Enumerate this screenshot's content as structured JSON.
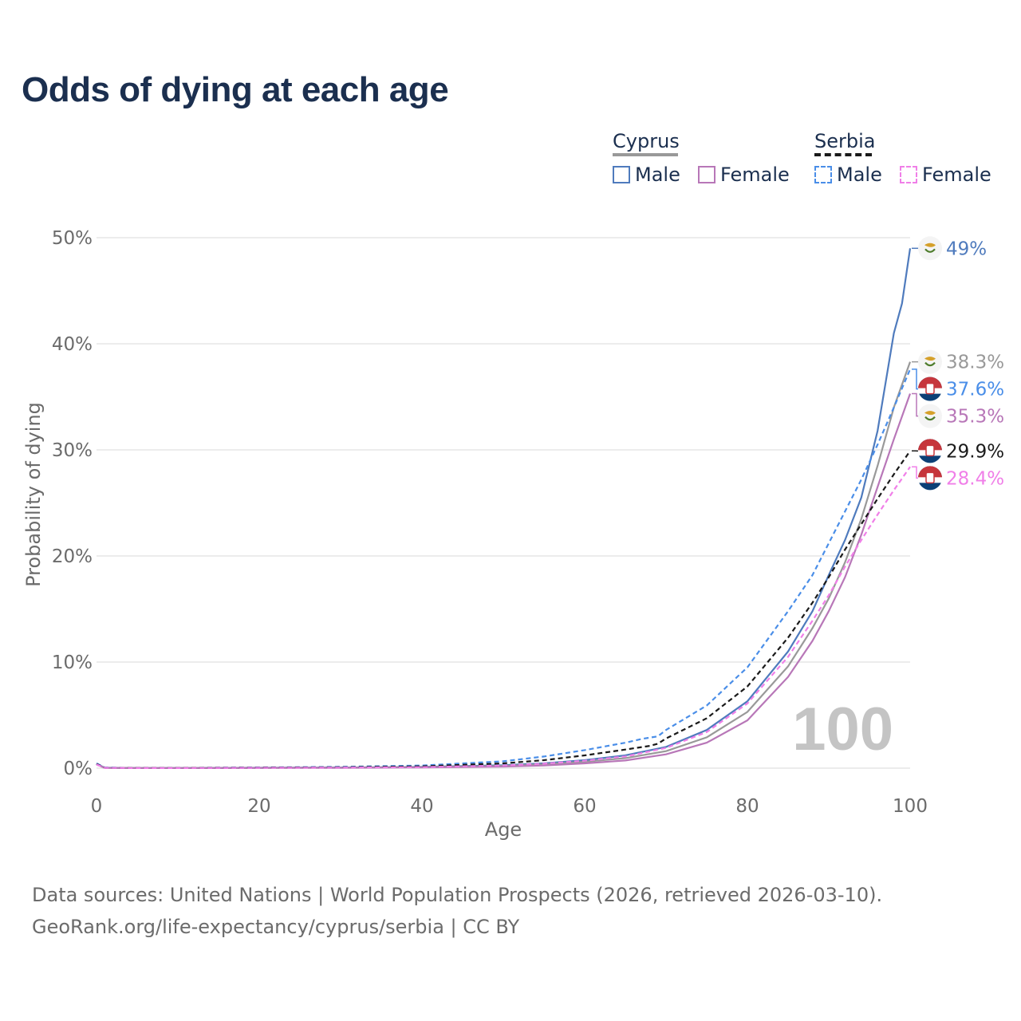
{
  "title": "Odds of dying at each age",
  "legend": {
    "groups": [
      {
        "country": "Cyprus",
        "line_style": "solid",
        "color": "#888888",
        "items": [
          {
            "label": "Male",
            "color": "#4f7bbd"
          },
          {
            "label": "Female",
            "color": "#b877b8"
          }
        ]
      },
      {
        "country": "Serbia",
        "line_style": "dashed",
        "color": "#1a1a1a",
        "items": [
          {
            "label": "Male",
            "color": "#4a8ee8"
          },
          {
            "label": "Female",
            "color": "#f07fe8"
          }
        ]
      }
    ]
  },
  "source_lines": [
    "Data sources: United Nations | World Population Prospects (2026, retrieved 2026-03-10).",
    "GeoRank.org/life-expectancy/cyprus/serbia | CC BY"
  ],
  "chart_data": {
    "type": "line",
    "title": "Odds of dying at each age",
    "xlabel": "Age",
    "ylabel": "Probability of dying",
    "xlim": [
      0,
      100
    ],
    "ylim": [
      0,
      50
    ],
    "x_ticks": [
      0,
      20,
      40,
      60,
      80,
      100
    ],
    "y_ticks": [
      0,
      10,
      20,
      30,
      40,
      50
    ],
    "y_tick_labels": [
      "0%",
      "10%",
      "20%",
      "30%",
      "40%",
      "50%"
    ],
    "grid": true,
    "watermark": "100",
    "series": [
      {
        "name": "Cyprus Male",
        "country": "Cyprus",
        "sex": "Male",
        "style": "solid",
        "color": "#4f7bbd",
        "end_label": "49%",
        "points": [
          [
            0,
            0.4
          ],
          [
            1,
            0.05
          ],
          [
            5,
            0.01
          ],
          [
            10,
            0.01
          ],
          [
            20,
            0.04
          ],
          [
            30,
            0.06
          ],
          [
            40,
            0.12
          ],
          [
            50,
            0.28
          ],
          [
            55,
            0.45
          ],
          [
            60,
            0.75
          ],
          [
            65,
            1.2
          ],
          [
            70,
            2.0
          ],
          [
            75,
            3.6
          ],
          [
            80,
            6.3
          ],
          [
            85,
            11.0
          ],
          [
            88,
            14.8
          ],
          [
            90,
            18.2
          ],
          [
            92,
            21.5
          ],
          [
            94,
            25.5
          ],
          [
            96,
            31.8
          ],
          [
            98,
            41.0
          ],
          [
            99,
            43.8
          ],
          [
            100,
            49.0
          ]
        ]
      },
      {
        "name": "Cyprus Total",
        "country": "Cyprus",
        "sex": "Total",
        "style": "solid",
        "color": "#999999",
        "end_label": "38.3%",
        "points": [
          [
            0,
            0.35
          ],
          [
            1,
            0.04
          ],
          [
            5,
            0.01
          ],
          [
            10,
            0.01
          ],
          [
            20,
            0.03
          ],
          [
            30,
            0.05
          ],
          [
            40,
            0.1
          ],
          [
            50,
            0.22
          ],
          [
            55,
            0.36
          ],
          [
            60,
            0.6
          ],
          [
            65,
            0.95
          ],
          [
            70,
            1.6
          ],
          [
            75,
            2.9
          ],
          [
            80,
            5.3
          ],
          [
            85,
            9.6
          ],
          [
            88,
            13.2
          ],
          [
            90,
            16.0
          ],
          [
            92,
            19.4
          ],
          [
            94,
            23.5
          ],
          [
            96,
            28.5
          ],
          [
            98,
            34.0
          ],
          [
            100,
            38.3
          ]
        ]
      },
      {
        "name": "Serbia Male",
        "country": "Serbia",
        "sex": "Male",
        "style": "dashed",
        "color": "#4a8ee8",
        "end_label": "37.6%",
        "points": [
          [
            0,
            0.45
          ],
          [
            1,
            0.05
          ],
          [
            5,
            0.02
          ],
          [
            10,
            0.02
          ],
          [
            20,
            0.07
          ],
          [
            30,
            0.12
          ],
          [
            40,
            0.25
          ],
          [
            50,
            0.65
          ],
          [
            55,
            1.1
          ],
          [
            60,
            1.7
          ],
          [
            65,
            2.4
          ],
          [
            67,
            2.75
          ],
          [
            69,
            3.0
          ],
          [
            70,
            3.6
          ],
          [
            75,
            5.9
          ],
          [
            80,
            9.5
          ],
          [
            85,
            14.8
          ],
          [
            88,
            18.2
          ],
          [
            90,
            21.2
          ],
          [
            92,
            24.2
          ],
          [
            94,
            27.2
          ],
          [
            96,
            30.5
          ],
          [
            98,
            34.0
          ],
          [
            100,
            37.6
          ]
        ]
      },
      {
        "name": "Cyprus Female",
        "country": "Cyprus",
        "sex": "Female",
        "style": "solid",
        "color": "#b877b8",
        "end_label": "35.3%",
        "points": [
          [
            0,
            0.35
          ],
          [
            1,
            0.03
          ],
          [
            5,
            0.01
          ],
          [
            10,
            0.01
          ],
          [
            20,
            0.02
          ],
          [
            30,
            0.03
          ],
          [
            40,
            0.07
          ],
          [
            50,
            0.15
          ],
          [
            55,
            0.25
          ],
          [
            60,
            0.45
          ],
          [
            65,
            0.72
          ],
          [
            70,
            1.3
          ],
          [
            75,
            2.4
          ],
          [
            80,
            4.5
          ],
          [
            85,
            8.6
          ],
          [
            88,
            12.0
          ],
          [
            90,
            14.8
          ],
          [
            92,
            18.0
          ],
          [
            94,
            22.0
          ],
          [
            96,
            26.5
          ],
          [
            98,
            31.0
          ],
          [
            100,
            35.3
          ]
        ]
      },
      {
        "name": "Serbia Total",
        "country": "Serbia",
        "sex": "Total",
        "style": "dashed",
        "color": "#1a1a1a",
        "end_label": "29.9%",
        "points": [
          [
            0,
            0.4
          ],
          [
            1,
            0.04
          ],
          [
            5,
            0.02
          ],
          [
            10,
            0.02
          ],
          [
            20,
            0.05
          ],
          [
            30,
            0.08
          ],
          [
            40,
            0.17
          ],
          [
            50,
            0.45
          ],
          [
            55,
            0.75
          ],
          [
            60,
            1.2
          ],
          [
            65,
            1.75
          ],
          [
            68,
            2.1
          ],
          [
            69,
            2.3
          ],
          [
            70,
            2.8
          ],
          [
            75,
            4.7
          ],
          [
            80,
            7.7
          ],
          [
            85,
            12.3
          ],
          [
            88,
            15.6
          ],
          [
            90,
            18.0
          ],
          [
            92,
            20.6
          ],
          [
            94,
            23.0
          ],
          [
            96,
            25.4
          ],
          [
            98,
            27.7
          ],
          [
            100,
            29.9
          ]
        ]
      },
      {
        "name": "Serbia Female",
        "country": "Serbia",
        "sex": "Female",
        "style": "dashed",
        "color": "#f07fe8",
        "end_label": "28.4%",
        "points": [
          [
            0,
            0.35
          ],
          [
            1,
            0.03
          ],
          [
            5,
            0.01
          ],
          [
            10,
            0.01
          ],
          [
            20,
            0.03
          ],
          [
            30,
            0.05
          ],
          [
            40,
            0.1
          ],
          [
            50,
            0.25
          ],
          [
            55,
            0.42
          ],
          [
            60,
            0.7
          ],
          [
            65,
            1.1
          ],
          [
            70,
            1.9
          ],
          [
            75,
            3.4
          ],
          [
            80,
            6.1
          ],
          [
            85,
            10.5
          ],
          [
            88,
            13.9
          ],
          [
            90,
            16.3
          ],
          [
            92,
            19.0
          ],
          [
            94,
            21.5
          ],
          [
            96,
            23.9
          ],
          [
            98,
            26.2
          ],
          [
            100,
            28.4
          ]
        ]
      }
    ]
  },
  "end_label_flags": {
    "Cyprus": "cyprus-flag-icon",
    "Serbia": "serbia-flag-icon"
  }
}
